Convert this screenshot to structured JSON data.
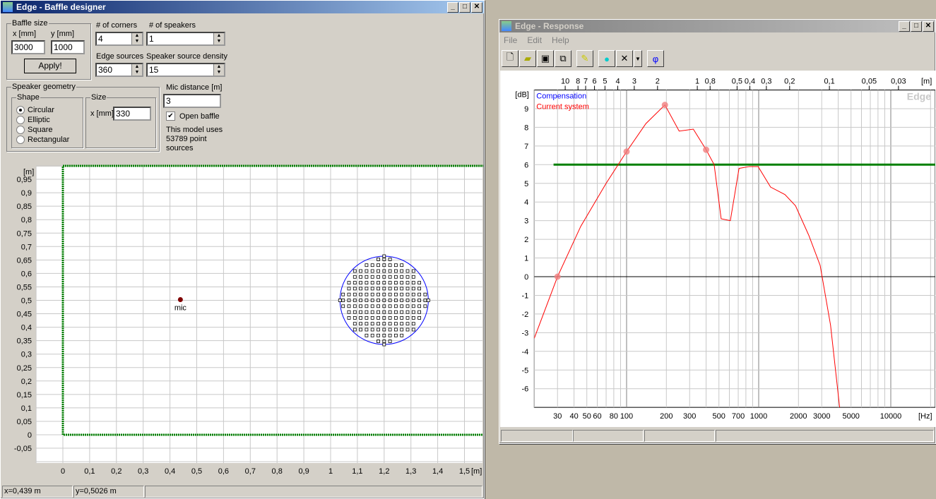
{
  "baffle": {
    "title": "Edge - Baffle designer",
    "baffle_size": {
      "label": "Baffle size",
      "x_label": "x [mm]",
      "y_label": "y [mm]",
      "x": "3000",
      "y": "1000",
      "apply": "Apply!"
    },
    "corners": {
      "label": "# of corners",
      "value": "4"
    },
    "speakers": {
      "label": "# of speakers",
      "value": "1"
    },
    "edge_sources": {
      "label": "Edge sources",
      "value": "360"
    },
    "density": {
      "label": "Speaker source density",
      "value": "15"
    },
    "geometry": {
      "label": "Speaker geometry",
      "shape_label": "Shape",
      "shapes": [
        "Circular",
        "Elliptic",
        "Square",
        "Rectangular"
      ],
      "selected": "Circular",
      "size_label": "Size",
      "size_x_label": "x [mm]",
      "size_x": "330"
    },
    "mic": {
      "label": "Mic distance [m]",
      "value": "3",
      "open_baffle": "Open baffle",
      "open_checked": true,
      "info": [
        "This model uses",
        "53789 point",
        "sources"
      ]
    },
    "plot": {
      "y_unit": "[m]",
      "x_unit": "[m]",
      "mic_label": "mic",
      "x_ticks": [
        "0",
        "0,1",
        "0,2",
        "0,3",
        "0,4",
        "0,5",
        "0,6",
        "0,7",
        "0,8",
        "0,9",
        "1",
        "1,1",
        "1,2",
        "1,3",
        "1,4",
        "1,5"
      ],
      "y_ticks": [
        "-0,05",
        "0",
        "0,05",
        "0,1",
        "0,15",
        "0,2",
        "0,25",
        "0,3",
        "0,35",
        "0,4",
        "0,45",
        "0,5",
        "0,55",
        "0,6",
        "0,65",
        "0,7",
        "0,75",
        "0,8",
        "0,85",
        "0,9",
        "0,95"
      ],
      "baffle_m": [
        3.0,
        1.0
      ],
      "speaker_center_m": [
        1.2,
        0.5
      ],
      "speaker_diameter_m": 0.33,
      "mic_m": [
        0.439,
        0.5026
      ],
      "baffle_color": "#008000",
      "speaker_color": "#0000ff"
    },
    "status": {
      "x": "x=0,439 m",
      "y": "y=0,5026 m"
    }
  },
  "response": {
    "title": "Edge - Response",
    "menu": [
      "File",
      "Edit",
      "Help"
    ],
    "toolbar": [
      "new-icon",
      "open-icon",
      "save-icon",
      "copy-icon",
      "pencil-icon",
      "bell-icon",
      "delete-icon",
      "dropdown-icon",
      "phi-icon"
    ],
    "phi": "φ",
    "watermark": "Edge",
    "chart_data": {
      "type": "line",
      "xscale": "log",
      "xlim": [
        20,
        22000
      ],
      "ylim": [
        -7,
        10
      ],
      "xlabel": "[Hz]",
      "ylabel": "[dB]",
      "top_axis_label": "[m]",
      "x_ticks": [
        "30",
        "40",
        "50",
        "60",
        "80",
        "100",
        "200",
        "300",
        "500",
        "700",
        "1000",
        "2000",
        "3000",
        "5000",
        "10000"
      ],
      "y_ticks": [
        "-6",
        "-5",
        "-4",
        "-3",
        "-2",
        "-1",
        "0",
        "1",
        "2",
        "3",
        "4",
        "5",
        "6",
        "7",
        "8",
        "9"
      ],
      "top_ticks": [
        "10",
        "8",
        "7",
        "6",
        "5",
        "4",
        "3",
        "2",
        "1",
        "0,8",
        "0,5",
        "0,4",
        "0,3",
        "0,2",
        "0,1",
        "0,05",
        "0,03"
      ],
      "legend": [
        "Compensation",
        "Current system"
      ],
      "series": [
        {
          "name": "Compensation",
          "color": "#008000",
          "x": [
            28,
            22000
          ],
          "y": [
            6,
            6
          ]
        },
        {
          "name": "Current system",
          "color": "#ff0000",
          "x": [
            20,
            30,
            45,
            70,
            100,
            140,
            195,
            250,
            320,
            400,
            460,
            520,
            610,
            710,
            850,
            990,
            1230,
            1580,
            1900,
            2400,
            2920,
            3500,
            4100
          ],
          "y": [
            -3.3,
            0,
            2.7,
            5.0,
            6.7,
            8.2,
            9.2,
            7.8,
            7.9,
            6.8,
            6.0,
            3.1,
            3.0,
            5.8,
            5.9,
            5.9,
            4.8,
            4.4,
            3.8,
            2.2,
            0.6,
            -2.6,
            -7
          ],
          "markers_x": [
            30,
            100,
            195,
            400
          ],
          "markers_y": [
            0,
            6.7,
            9.2,
            6.8
          ]
        }
      ]
    }
  }
}
